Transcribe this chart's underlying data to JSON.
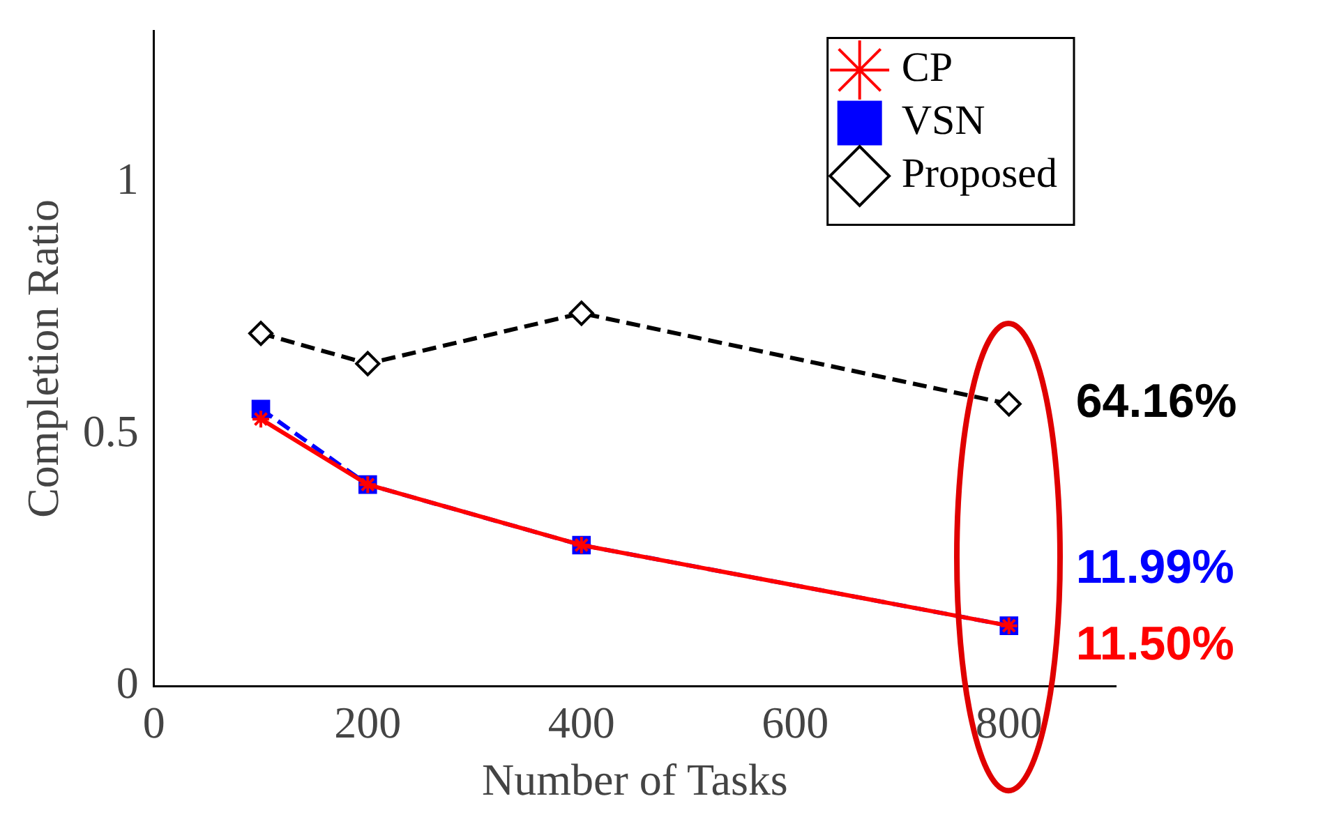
{
  "chart_data": {
    "type": "line",
    "xlabel": "Number of Tasks",
    "ylabel": "Completion Ratio",
    "xlim": [
      0,
      900
    ],
    "xticks": [
      0,
      200,
      400,
      600,
      800
    ],
    "ylim": [
      0,
      1.3
    ],
    "yticks": [
      0,
      0.5,
      1
    ],
    "grid": false,
    "legend": "top right",
    "series": [
      {
        "name": "CP",
        "color": "#ff0000",
        "marker": "cross",
        "line_style": "solid",
        "x": [
          100,
          200,
          400,
          800
        ],
        "values": [
          0.53,
          0.4,
          0.28,
          0.12
        ]
      },
      {
        "name": "VSN",
        "color": "#0000ff",
        "marker": "square",
        "line_style": "dashed",
        "x": [
          100,
          200,
          400,
          800
        ],
        "values": [
          0.55,
          0.4,
          0.28,
          0.12
        ]
      },
      {
        "name": "Proposed",
        "color": "#000000",
        "marker": "diamond",
        "line_style": "dashed",
        "x": [
          100,
          200,
          400,
          800
        ],
        "values": [
          0.7,
          0.64,
          0.74,
          0.56
        ]
      }
    ],
    "annotations": [
      "11.50%",
      "11.99%",
      "64.16%"
    ]
  }
}
